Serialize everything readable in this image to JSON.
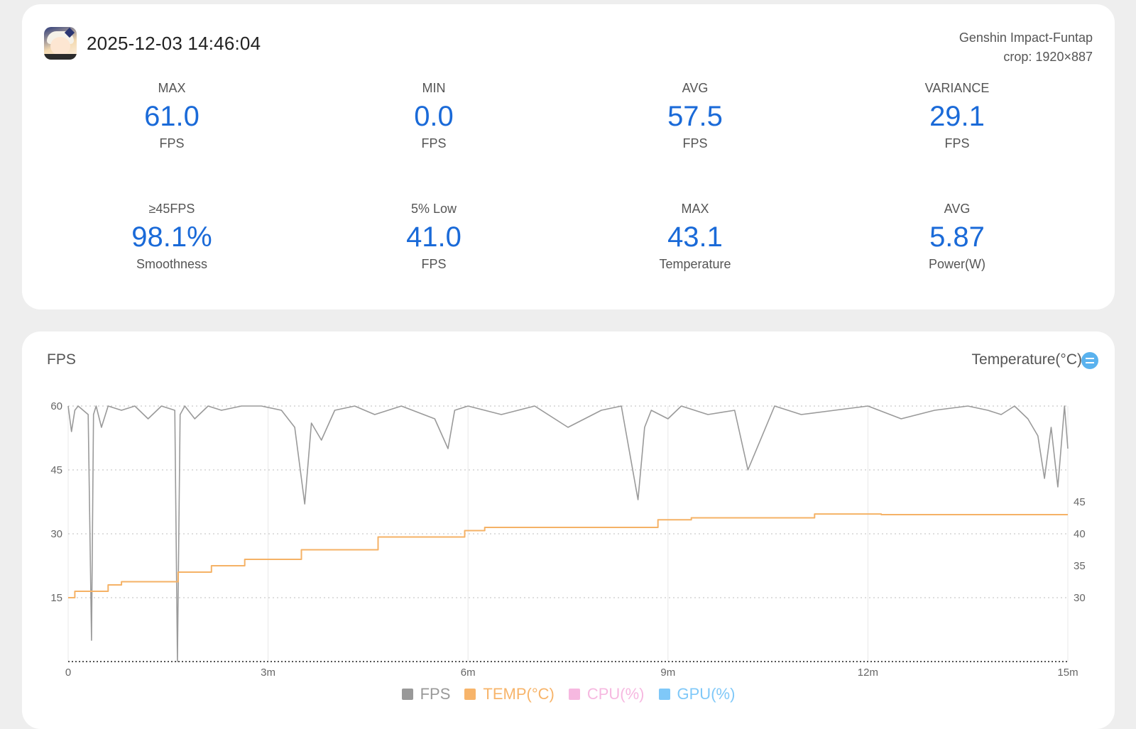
{
  "header": {
    "datetime": "2025-12-03 14:46:04",
    "app_name": "Genshin Impact-Funtap",
    "crop": "crop: 1920×887"
  },
  "stats": [
    {
      "label": "MAX",
      "value": "61.0",
      "unit": "FPS"
    },
    {
      "label": "MIN",
      "value": "0.0",
      "unit": "FPS"
    },
    {
      "label": "AVG",
      "value": "57.5",
      "unit": "FPS"
    },
    {
      "label": "VARIANCE",
      "value": "29.1",
      "unit": "FPS"
    },
    {
      "label": "≥45FPS",
      "value": "98.1%",
      "unit": "Smoothness"
    },
    {
      "label": "5% Low",
      "value": "41.0",
      "unit": "FPS"
    },
    {
      "label": "MAX",
      "value": "43.1",
      "unit": "Temperature"
    },
    {
      "label": "AVG",
      "value": "5.87",
      "unit": "Power(W)"
    }
  ],
  "chart": {
    "left_title": "FPS",
    "right_title": "Temperature(°C)"
  },
  "legend": [
    {
      "name": "FPS",
      "color": "#999999"
    },
    {
      "name": "TEMP(°C)",
      "color": "#f7b46a"
    },
    {
      "name": "CPU(%)",
      "color": "#f6b8e0"
    },
    {
      "name": "GPU(%)",
      "color": "#7fc8f8"
    }
  ],
  "chart_data": {
    "type": "line",
    "x_unit": "minutes",
    "x_ticks": [
      "0",
      "3m",
      "6m",
      "9m",
      "12m",
      "15m"
    ],
    "xlim": [
      0,
      15
    ],
    "y_left": {
      "label": "FPS",
      "ticks": [
        15,
        30,
        45,
        60
      ],
      "ylim": [
        0,
        60
      ]
    },
    "y_right": {
      "label": "Temperature(°C)",
      "ticks": [
        30,
        35,
        40,
        45
      ],
      "ylim": [
        20,
        60
      ]
    },
    "grid": true,
    "legend_position": "bottom",
    "series": [
      {
        "name": "FPS",
        "color": "#9a9a9a",
        "axis": "left",
        "x": [
          0,
          0.05,
          0.1,
          0.15,
          0.3,
          0.35,
          0.38,
          0.42,
          0.5,
          0.6,
          0.8,
          1.0,
          1.2,
          1.4,
          1.6,
          1.64,
          1.68,
          1.75,
          1.9,
          2.1,
          2.3,
          2.6,
          2.9,
          3.2,
          3.4,
          3.55,
          3.65,
          3.8,
          4.0,
          4.3,
          4.6,
          5.0,
          5.5,
          5.7,
          5.8,
          6.0,
          6.5,
          7.0,
          7.5,
          8.0,
          8.3,
          8.55,
          8.65,
          8.75,
          9.0,
          9.2,
          9.6,
          10.0,
          10.2,
          10.6,
          11.0,
          11.5,
          12.0,
          12.5,
          13.0,
          13.5,
          13.8,
          14.0,
          14.2,
          14.4,
          14.55,
          14.65,
          14.75,
          14.85,
          14.95,
          15.0
        ],
        "y": [
          60,
          54,
          59,
          60,
          58,
          5,
          58,
          60,
          55,
          60,
          59,
          60,
          57,
          60,
          59,
          0,
          58,
          60,
          57,
          60,
          59,
          60,
          60,
          59,
          55,
          37,
          56,
          52,
          59,
          60,
          58,
          60,
          57,
          50,
          59,
          60,
          58,
          60,
          55,
          59,
          60,
          38,
          55,
          59,
          57,
          60,
          58,
          59,
          45,
          60,
          58,
          59,
          60,
          57,
          59,
          60,
          59,
          58,
          60,
          57,
          53,
          43,
          55,
          41,
          60,
          50
        ]
      },
      {
        "name": "TEMP(°C)",
        "color": "#f5b266",
        "axis": "right",
        "x": [
          0,
          0.1,
          0.1,
          0.6,
          0.6,
          0.8,
          0.8,
          1.65,
          1.65,
          2.15,
          2.15,
          2.65,
          2.65,
          3.5,
          3.5,
          4.65,
          4.65,
          5.95,
          5.95,
          6.25,
          6.25,
          8.85,
          8.85,
          9.35,
          9.35,
          11.2,
          11.2,
          12.2,
          12.2,
          15.0
        ],
        "y": [
          30,
          30,
          31,
          31,
          32,
          32,
          32.5,
          32.5,
          34,
          34,
          35,
          35,
          36,
          36,
          37.5,
          37.5,
          39.5,
          39.5,
          40.5,
          40.5,
          41,
          41,
          42.2,
          42.2,
          42.5,
          42.5,
          43.1,
          43.1,
          43,
          43
        ]
      }
    ]
  }
}
